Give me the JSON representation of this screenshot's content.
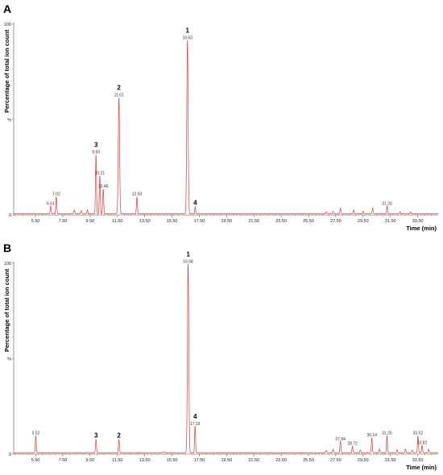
{
  "chart_data": [
    {
      "panel": "A",
      "type": "line",
      "xlabel": "Time (min)",
      "ylabel": "Percentage of total ion count",
      "xlim": [
        3.9,
        35.0
      ],
      "ylim": [
        0,
        100
      ],
      "x_ticks": [
        "5.50",
        "7.50",
        "9.50",
        "11.50",
        "13.50",
        "15.50",
        "17.50",
        "19.50",
        "21.50",
        "23.50",
        "25.50",
        "27.50",
        "29.50",
        "31.50",
        "33.50"
      ],
      "y_ticks": [
        "100",
        "%",
        "0"
      ],
      "color": "#e23b3b",
      "peaks": [
        {
          "t": 6.61,
          "h": 4,
          "time_label": "6.61"
        },
        {
          "t": 7.02,
          "h": 9,
          "time_label": "7.02"
        },
        {
          "t": 8.35,
          "h": 2.2
        },
        {
          "t": 8.85,
          "h": 1.8
        },
        {
          "t": 9.3,
          "h": 2.0
        },
        {
          "t": 9.93,
          "h": 31,
          "time_label": "9.93",
          "compound": "3"
        },
        {
          "t": 10.21,
          "h": 20,
          "time_label": "10.21"
        },
        {
          "t": 10.46,
          "h": 13,
          "time_label": "10.46"
        },
        {
          "t": 11.61,
          "h": 61,
          "time_label": "11.61",
          "compound": "2"
        },
        {
          "t": 12.93,
          "h": 9,
          "time_label": "12.93"
        },
        {
          "t": 16.63,
          "h": 91,
          "time_label": "16.63",
          "compound": "1"
        },
        {
          "t": 17.2,
          "h": 3.5,
          "compound": "4"
        },
        {
          "t": 26.8,
          "h": 1.2
        },
        {
          "t": 27.3,
          "h": 1.4
        },
        {
          "t": 27.84,
          "h": 3
        },
        {
          "t": 28.8,
          "h": 1.8
        },
        {
          "t": 29.5,
          "h": 1.2
        },
        {
          "t": 30.2,
          "h": 3.2
        },
        {
          "t": 31.26,
          "h": 4,
          "time_label": "31.26"
        },
        {
          "t": 32.2,
          "h": 1.0
        },
        {
          "t": 33.0,
          "h": 1.0
        }
      ]
    },
    {
      "panel": "B",
      "type": "line",
      "xlabel": "Time (min)",
      "ylabel": "Percentage of total ion count",
      "xlim": [
        3.9,
        35.0
      ],
      "ylim": [
        0,
        100
      ],
      "x_ticks": [
        "5.50",
        "7.50",
        "9.50",
        "11.50",
        "13.50",
        "15.50",
        "17.50",
        "19.50",
        "21.50",
        "23.50",
        "25.50",
        "27.50",
        "29.50",
        "31.50",
        "33.50"
      ],
      "y_ticks": [
        "100",
        "%",
        "0"
      ],
      "color": "#e23b3b",
      "peaks": [
        {
          "t": 5.52,
          "h": 9,
          "time_label": "5.52"
        },
        {
          "t": 9.93,
          "h": 7,
          "compound": "3"
        },
        {
          "t": 11.61,
          "h": 7,
          "compound": "2"
        },
        {
          "t": 14.9,
          "h": 1.0
        },
        {
          "t": 16.68,
          "h": 99,
          "time_label": "16.68",
          "compound": "1"
        },
        {
          "t": 17.19,
          "h": 14,
          "time_label": "17.19",
          "compound": "4"
        },
        {
          "t": 26.8,
          "h": 1.5
        },
        {
          "t": 27.3,
          "h": 2
        },
        {
          "t": 27.84,
          "h": 6,
          "time_label": "27.84"
        },
        {
          "t": 28.72,
          "h": 3.5,
          "time_label": "28.72"
        },
        {
          "t": 29.3,
          "h": 1.5
        },
        {
          "t": 30.14,
          "h": 8,
          "time_label": "30.14"
        },
        {
          "t": 30.7,
          "h": 2.0
        },
        {
          "t": 31.25,
          "h": 9,
          "time_label": "31.25"
        },
        {
          "t": 32.0,
          "h": 1.5
        },
        {
          "t": 32.6,
          "h": 2.0
        },
        {
          "t": 33.1,
          "h": 1.5
        },
        {
          "t": 33.52,
          "h": 9,
          "time_label": "33.52"
        },
        {
          "t": 33.82,
          "h": 4,
          "time_label": "33.82"
        },
        {
          "t": 34.3,
          "h": 2.0
        }
      ]
    }
  ]
}
